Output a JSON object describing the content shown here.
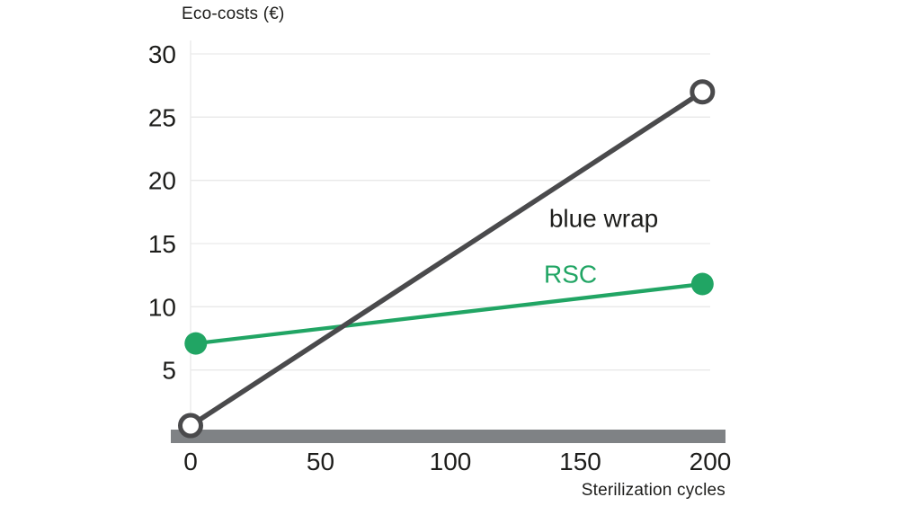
{
  "page": {
    "background_color": "#FFFFFF"
  },
  "chart_data": {
    "type": "line",
    "title": "Eco-costs (€)",
    "title_position": "top-left",
    "xlabel": "Sterilization cycles",
    "xlabel_position": "bottom-right",
    "xlim": [
      0,
      200
    ],
    "ylim": [
      0,
      30
    ],
    "xticks": [
      0,
      50,
      100,
      150,
      200
    ],
    "yticks": [
      5,
      10,
      15,
      20,
      25,
      30
    ],
    "grid": "horizontal",
    "grid_color": "#E9E9E9",
    "text_color": "#1D1D1B",
    "baseline_bar_color": "#7F8285",
    "legend_position": "inline-labels",
    "series": [
      {
        "name": "blue wrap",
        "color": "#4A4A4C",
        "label_color": "#1D1D1B",
        "marker": "open-circle",
        "marker_fill": "#FFFFFF",
        "points": [
          [
            0,
            0.6
          ],
          [
            197,
            27.0
          ]
        ],
        "label": {
          "x": 138,
          "y": 16.3
        }
      },
      {
        "name": "RSC",
        "color": "#21A564",
        "label_color": "#21A564",
        "marker": "filled-circle",
        "points": [
          [
            2,
            7.1
          ],
          [
            197,
            11.8
          ]
        ],
        "label": {
          "x": 136,
          "y": 11.9
        }
      }
    ]
  }
}
